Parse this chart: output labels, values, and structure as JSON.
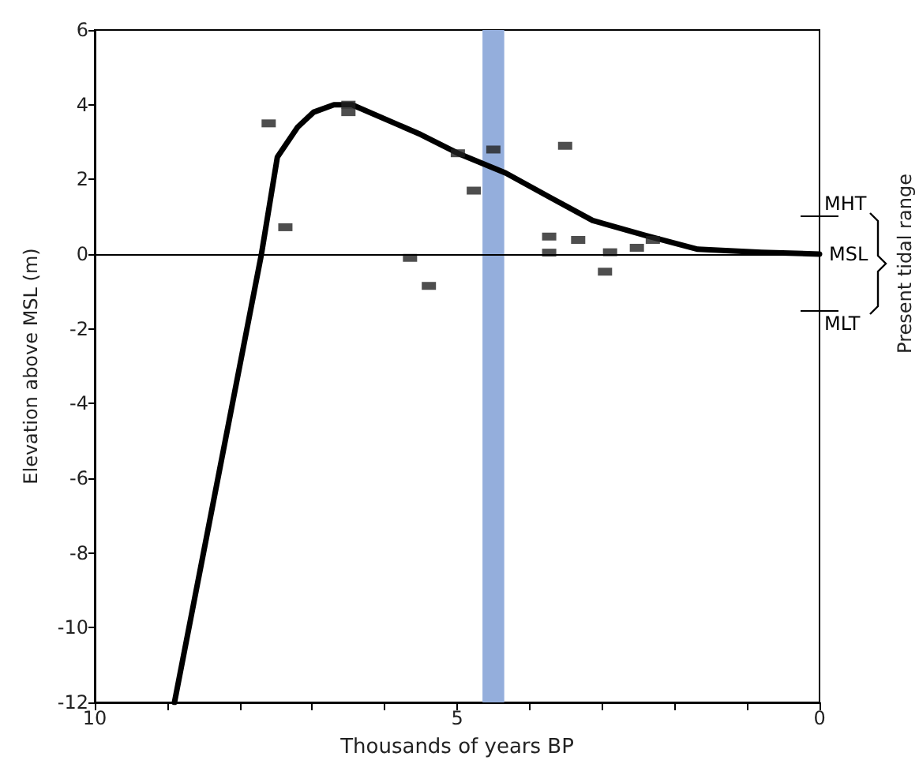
{
  "chart_data": {
    "type": "line",
    "xlabel": "Thousands of years BP",
    "ylabel": "Elevation above MSL (m)",
    "xlim": [
      10,
      0
    ],
    "ylim": [
      -12,
      6
    ],
    "xticks": [
      10,
      {
        "value": 9,
        "label": null
      },
      {
        "value": 8,
        "label": null
      },
      {
        "value": 7,
        "label": null
      },
      {
        "value": 6,
        "label": null
      },
      5,
      {
        "value": 4,
        "label": null
      },
      {
        "value": 3,
        "label": null
      },
      {
        "value": 2,
        "label": null
      },
      {
        "value": 1,
        "label": null
      },
      0
    ],
    "yticks": [
      -12,
      -10,
      -8,
      -6,
      -4,
      -2,
      0,
      2,
      4,
      6
    ],
    "grid": false,
    "series": [
      {
        "color": "#000000",
        "marker": "none",
        "line_style": "solid",
        "x": [
          8.9,
          8.3,
          7.7,
          7.48,
          7.2,
          6.98,
          6.7,
          6.45,
          5.5,
          4.99,
          4.33,
          3.7,
          3.13,
          2.4,
          1.68,
          0.8,
          0
        ],
        "values": [
          -12,
          -6,
          0,
          2.6,
          3.4,
          3.8,
          4.0,
          4.0,
          3.2,
          2.7,
          2.17,
          1.5,
          0.9,
          0.5,
          0.13,
          0.05,
          0
        ]
      },
      {
        "type": "scatter",
        "color": "#222222",
        "marker": "square",
        "x": [
          7.6,
          7.37,
          6.5,
          6.5,
          4.99,
          4.77,
          5.65,
          5.39,
          4.5,
          3.51,
          3.73,
          3.73,
          3.33,
          2.89,
          2.96,
          2.52,
          2.3
        ],
        "values": [
          3.5,
          0.72,
          4.0,
          3.8,
          2.7,
          1.7,
          -0.1,
          -0.85,
          2.8,
          2.9,
          0.47,
          0.04,
          0.38,
          0.05,
          -0.47,
          0.17,
          0.38
        ]
      }
    ],
    "bands": [
      {
        "axis": "x",
        "from": 4.65,
        "to": 4.35,
        "color": "#94aedc"
      }
    ],
    "ref_lines": [
      {
        "axis": "y",
        "value": 0,
        "label": "MSL"
      }
    ],
    "annotations": [
      "MHT",
      "MLT",
      "Present tidal range"
    ]
  }
}
